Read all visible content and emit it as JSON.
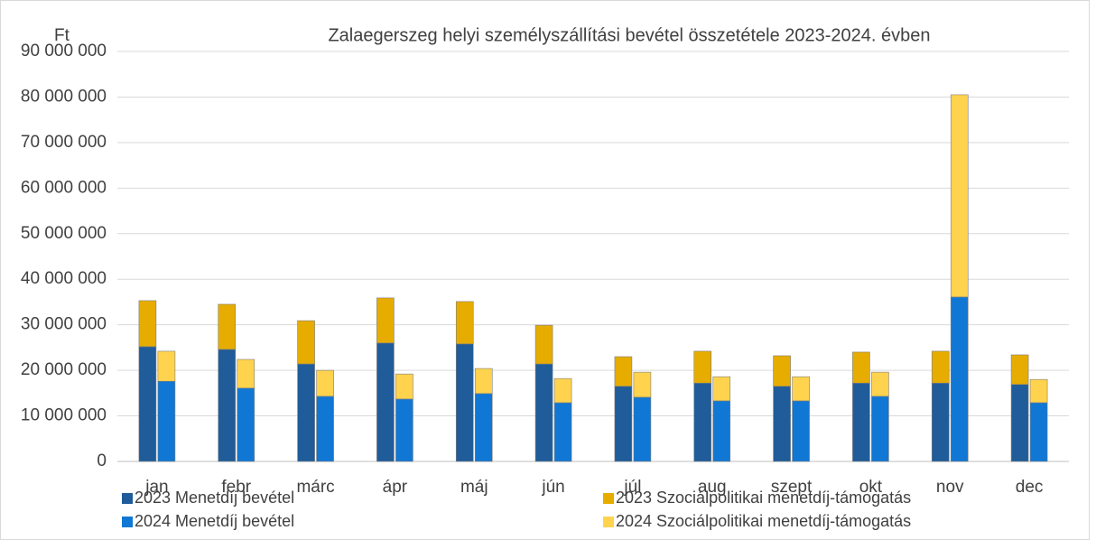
{
  "chart_data": {
    "type": "bar",
    "title": "Zalaegerszeg helyi személyszállítási bevétel összetétele 2023-2024. évben",
    "y_axis_label": "Ft",
    "categories": [
      "jan",
      "febr",
      "márc",
      "ápr",
      "máj",
      "jún",
      "júl",
      "aug",
      "szept",
      "okt",
      "nov",
      "dec"
    ],
    "series": [
      {
        "name": "2023 Menetdíj bevétel",
        "color": "#1f5c99",
        "values": [
          25200000,
          24600000,
          21400000,
          26000000,
          25800000,
          21400000,
          16500000,
          17200000,
          16500000,
          17200000,
          17200000,
          16900000
        ]
      },
      {
        "name": "2023 Szociálpolitikai menetdíj-támogatás",
        "color": "#e6ac00",
        "values": [
          10100000,
          9900000,
          9500000,
          9900000,
          9300000,
          8500000,
          6500000,
          7000000,
          6700000,
          6800000,
          7000000,
          6500000
        ]
      },
      {
        "name": "2024 Menetdíj bevétel",
        "color": "#1177d4",
        "values": [
          17600000,
          16100000,
          14300000,
          13700000,
          14900000,
          12900000,
          14100000,
          13300000,
          13300000,
          14300000,
          36100000,
          12900000
        ]
      },
      {
        "name": "2024 Szociálpolitikai menetdíj-támogatás",
        "color": "#ffd34d",
        "values": [
          6600000,
          6300000,
          5700000,
          5500000,
          5500000,
          5300000,
          5500000,
          5300000,
          5300000,
          5300000,
          44400000,
          5100000
        ]
      }
    ],
    "ylim": [
      0,
      90000000
    ],
    "yticks": [
      0,
      {
        "value": 10000000,
        "label": "10 000 000"
      },
      {
        "value": 20000000,
        "label": "20 000 000"
      },
      {
        "value": 30000000,
        "label": "30 000 000"
      },
      {
        "value": 40000000,
        "label": "40 000 000"
      },
      {
        "value": 50000000,
        "label": "50 000 000"
      },
      {
        "value": 60000000,
        "label": "60 000 000"
      },
      {
        "value": 70000000,
        "label": "70 000 000"
      },
      {
        "value": 80000000,
        "label": "80 000 000"
      },
      {
        "value": 90000000,
        "label": "90 000 000"
      }
    ],
    "grid": true,
    "legend": "bottom"
  }
}
